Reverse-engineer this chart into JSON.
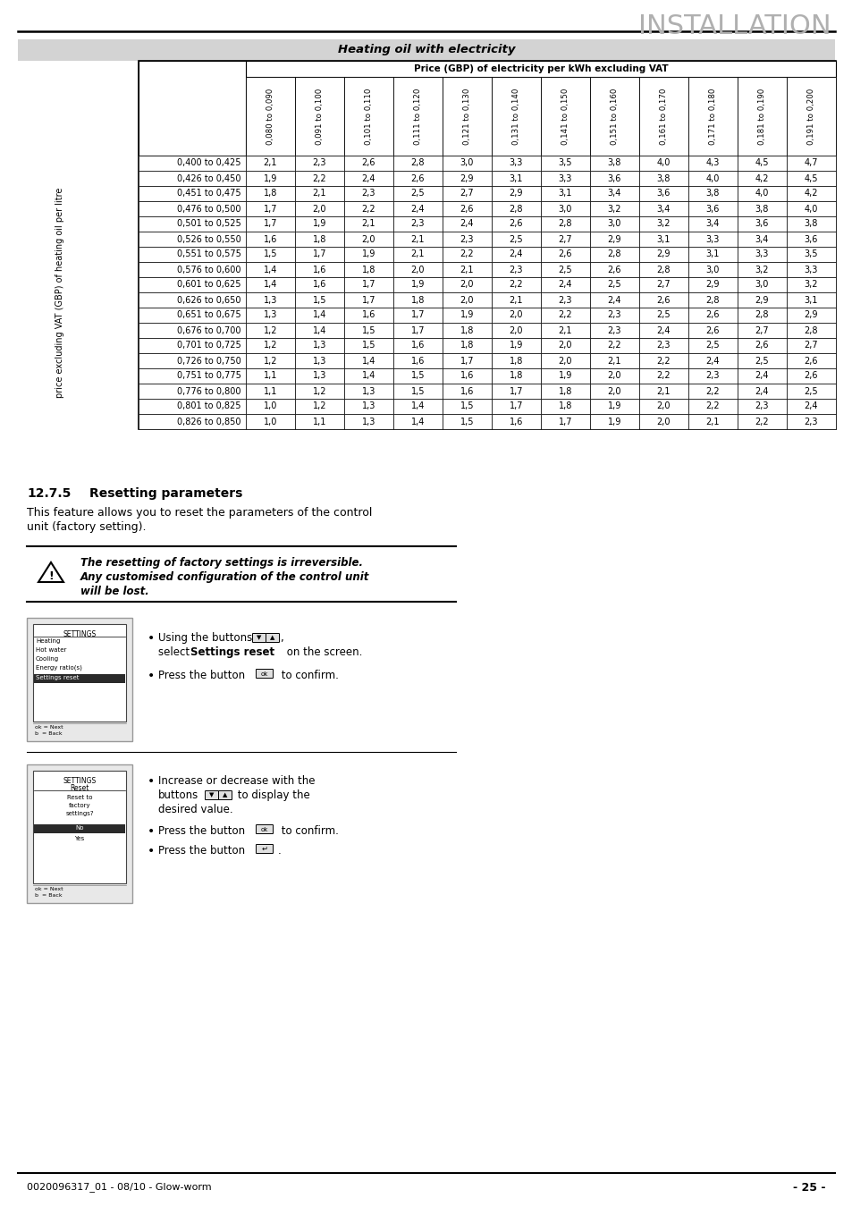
{
  "title_installation": "INSTALLATION",
  "section_title": "Heating oil with electricity",
  "table_header_main": "Price (GBP) of electricity per kWh excluding VAT",
  "col_headers": [
    "0,080 to 0,090",
    "0,091 to 0,100",
    "0,101 to 0,110",
    "0,111 to 0,120",
    "0,121 to 0,130",
    "0,131 to 0,140",
    "0,141 to 0,150",
    "0,151 to 0,160",
    "0,161 to 0,170",
    "0,171 to 0,180",
    "0,181 to 0,190",
    "0,191 to 0,200"
  ],
  "row_headers": [
    "0,400 to 0,425",
    "0,426 to 0,450",
    "0,451 to 0,475",
    "0,476 to 0,500",
    "0,501 to 0,525",
    "0,526 to 0,550",
    "0,551 to 0,575",
    "0,576 to 0,600",
    "0,601 to 0,625",
    "0,626 to 0,650",
    "0,651 to 0,675",
    "0,676 to 0,700",
    "0,701 to 0,725",
    "0,726 to 0,750",
    "0,751 to 0,775",
    "0,776 to 0,800",
    "0,801 to 0,825",
    "0,826 to 0,850"
  ],
  "table_data": [
    [
      2.1,
      2.3,
      2.6,
      2.8,
      3.0,
      3.3,
      3.5,
      3.8,
      4.0,
      4.3,
      4.5,
      4.7
    ],
    [
      1.9,
      2.2,
      2.4,
      2.6,
      2.9,
      3.1,
      3.3,
      3.6,
      3.8,
      4.0,
      4.2,
      4.5
    ],
    [
      1.8,
      2.1,
      2.3,
      2.5,
      2.7,
      2.9,
      3.1,
      3.4,
      3.6,
      3.8,
      4.0,
      4.2
    ],
    [
      1.7,
      2.0,
      2.2,
      2.4,
      2.6,
      2.8,
      3.0,
      3.2,
      3.4,
      3.6,
      3.8,
      4.0
    ],
    [
      1.7,
      1.9,
      2.1,
      2.3,
      2.4,
      2.6,
      2.8,
      3.0,
      3.2,
      3.4,
      3.6,
      3.8
    ],
    [
      1.6,
      1.8,
      2.0,
      2.1,
      2.3,
      2.5,
      2.7,
      2.9,
      3.1,
      3.3,
      3.4,
      3.6
    ],
    [
      1.5,
      1.7,
      1.9,
      2.1,
      2.2,
      2.4,
      2.6,
      2.8,
      2.9,
      3.1,
      3.3,
      3.5
    ],
    [
      1.4,
      1.6,
      1.8,
      2.0,
      2.1,
      2.3,
      2.5,
      2.6,
      2.8,
      3.0,
      3.2,
      3.3
    ],
    [
      1.4,
      1.6,
      1.7,
      1.9,
      2.0,
      2.2,
      2.4,
      2.5,
      2.7,
      2.9,
      3.0,
      3.2
    ],
    [
      1.3,
      1.5,
      1.7,
      1.8,
      2.0,
      2.1,
      2.3,
      2.4,
      2.6,
      2.8,
      2.9,
      3.1
    ],
    [
      1.3,
      1.4,
      1.6,
      1.7,
      1.9,
      2.0,
      2.2,
      2.3,
      2.5,
      2.6,
      2.8,
      2.9
    ],
    [
      1.2,
      1.4,
      1.5,
      1.7,
      1.8,
      2.0,
      2.1,
      2.3,
      2.4,
      2.6,
      2.7,
      2.8
    ],
    [
      1.2,
      1.3,
      1.5,
      1.6,
      1.8,
      1.9,
      2.0,
      2.2,
      2.3,
      2.5,
      2.6,
      2.7
    ],
    [
      1.2,
      1.3,
      1.4,
      1.6,
      1.7,
      1.8,
      2.0,
      2.1,
      2.2,
      2.4,
      2.5,
      2.6
    ],
    [
      1.1,
      1.3,
      1.4,
      1.5,
      1.6,
      1.8,
      1.9,
      2.0,
      2.2,
      2.3,
      2.4,
      2.6
    ],
    [
      1.1,
      1.2,
      1.3,
      1.5,
      1.6,
      1.7,
      1.8,
      2.0,
      2.1,
      2.2,
      2.4,
      2.5
    ],
    [
      1.0,
      1.2,
      1.3,
      1.4,
      1.5,
      1.7,
      1.8,
      1.9,
      2.0,
      2.2,
      2.3,
      2.4
    ],
    [
      1.0,
      1.1,
      1.3,
      1.4,
      1.5,
      1.6,
      1.7,
      1.9,
      2.0,
      2.1,
      2.2,
      2.3
    ]
  ],
  "y_axis_label": "price excluding VAT (GBP) of heating oil per litre",
  "section_number": "12.7.5",
  "section_heading": "Resetting parameters",
  "body_text_line1": "This feature allows you to reset the parameters of the control",
  "body_text_line2": "unit (factory setting).",
  "warning_text_line1": "The resetting of factory settings is irreversible.",
  "warning_text_line2": "Any customised configuration of the control unit",
  "warning_text_line3": "will be lost.",
  "footer_text": "0020096317_01 - 08/10 - Glow-worm",
  "page_number": "- 25 -"
}
